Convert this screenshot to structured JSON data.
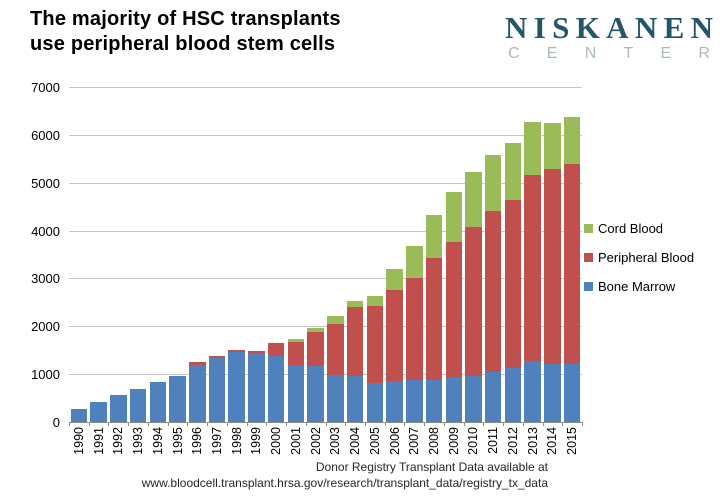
{
  "header": {
    "title_line1": "The majority of HSC transplants",
    "title_line2": "use peripheral blood stem cells",
    "logo": {
      "name": "NISKANEN",
      "subname": "CENTER",
      "name_color": "#24566A",
      "subname_color": "#A9B9C0"
    }
  },
  "chart_data": {
    "type": "bar",
    "stacked": true,
    "title": "The majority of HSC transplants use peripheral blood stem cells",
    "xlabel": "",
    "ylabel": "",
    "ylim": [
      0,
      7000
    ],
    "ytick_step": 1000,
    "grid": true,
    "legend_position": "right-middle",
    "categories": [
      "1990",
      "1991",
      "1992",
      "1993",
      "1994",
      "1995",
      "1996",
      "1997",
      "1998",
      "1999",
      "2000",
      "2001",
      "2002",
      "2003",
      "2004",
      "2005",
      "2006",
      "2007",
      "2008",
      "2009",
      "2010",
      "2011",
      "2012",
      "2013",
      "2014",
      "2015"
    ],
    "series": [
      {
        "name": "Bone Marrow",
        "color": "#4F81BD",
        "values": [
          270,
          425,
          560,
          685,
          830,
          960,
          1190,
          1330,
          1470,
          1450,
          1370,
          1200,
          1175,
          990,
          970,
          820,
          865,
          880,
          885,
          940,
          955,
          1040,
          1135,
          1275,
          1205,
          1205
        ]
      },
      {
        "name": "Peripheral Blood",
        "color": "#C0504D",
        "values": [
          0,
          0,
          0,
          0,
          0,
          0,
          55,
          50,
          25,
          40,
          290,
          480,
          715,
          1060,
          1440,
          1605,
          1900,
          2125,
          2550,
          2820,
          3110,
          3360,
          3495,
          3895,
          4080,
          4185
        ]
      },
      {
        "name": "Cord Blood",
        "color": "#9BBB59",
        "values": [
          0,
          0,
          0,
          0,
          0,
          0,
          0,
          0,
          0,
          0,
          0,
          55,
          70,
          170,
          120,
          210,
          430,
          675,
          895,
          1045,
          1150,
          1190,
          1200,
          1105,
          965,
          975
        ]
      }
    ],
    "legend": [
      {
        "label": "Cord Blood",
        "color": "#9BBB59"
      },
      {
        "label": "Peripheral Blood",
        "color": "#C0504D"
      },
      {
        "label": "Bone Marrow",
        "color": "#4F81BD"
      }
    ],
    "grid_color": "#C6C6C6",
    "axis_color": "#8C8C8C"
  },
  "footer": {
    "caption_line1": "Donor Registry Transplant Data available at",
    "caption_line2": "www.bloodcell.transplant.hrsa.gov/research/transplant_data/registry_tx_data"
  }
}
